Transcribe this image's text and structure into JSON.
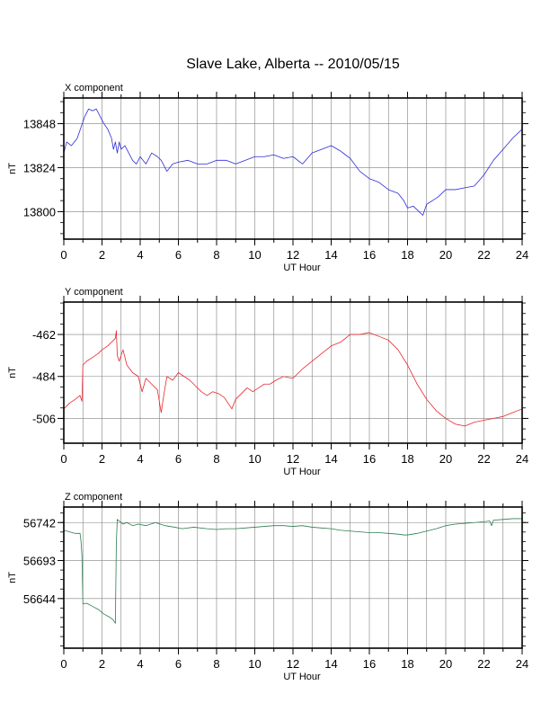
{
  "title": "Slave Lake, Alberta -- 2010/05/15",
  "chart_data": [
    {
      "type": "line",
      "component_label": "X component",
      "xlabel": "UT Hour",
      "ylabel": "nT",
      "xlim": [
        0,
        24
      ],
      "ylim": [
        13785,
        13862
      ],
      "xticks": [
        0,
        2,
        4,
        6,
        8,
        10,
        12,
        14,
        16,
        18,
        20,
        22,
        24
      ],
      "yticks": [
        13800,
        13824,
        13848
      ],
      "grid": true,
      "series": [
        {
          "color": "#2b2bd9",
          "x": [
            0,
            0.15,
            0.4,
            0.7,
            0.9,
            1.1,
            1.3,
            1.5,
            1.7,
            1.9,
            2.1,
            2.3,
            2.5,
            2.6,
            2.7,
            2.8,
            2.9,
            3.0,
            3.2,
            3.4,
            3.6,
            3.8,
            4.0,
            4.3,
            4.6,
            4.9,
            5.1,
            5.4,
            5.7,
            6.0,
            6.5,
            7.0,
            7.5,
            8.0,
            8.5,
            9.0,
            9.5,
            10.0,
            10.5,
            11.0,
            11.5,
            12.0,
            12.5,
            13.0,
            13.5,
            14.0,
            14.5,
            15.0,
            15.5,
            16.0,
            16.5,
            17.0,
            17.5,
            17.8,
            18.0,
            18.3,
            18.6,
            18.8,
            19.0,
            19.3,
            19.6,
            20.0,
            20.5,
            21.0,
            21.5,
            22.0,
            22.5,
            23.0,
            23.5,
            24.0
          ],
          "y": [
            13832,
            13838,
            13836,
            13840,
            13846,
            13852,
            13856,
            13855,
            13856,
            13852,
            13848,
            13845,
            13840,
            13834,
            13838,
            13832,
            13838,
            13834,
            13836,
            13832,
            13828,
            13826,
            13830,
            13826,
            13832,
            13830,
            13828,
            13822,
            13826,
            13827,
            13828,
            13826,
            13826,
            13828,
            13828,
            13826,
            13828,
            13830,
            13830,
            13831,
            13829,
            13830,
            13826,
            13832,
            13834,
            13836,
            13833,
            13829,
            13822,
            13818,
            13816,
            13812,
            13810,
            13806,
            13802,
            13803,
            13800,
            13798,
            13804,
            13806,
            13808,
            13812,
            13812,
            13813,
            13814,
            13820,
            13828,
            13834,
            13840,
            13845
          ]
        }
      ]
    },
    {
      "type": "line",
      "component_label": "Y component",
      "xlabel": "UT Hour",
      "ylabel": "nT",
      "xlim": [
        0,
        24
      ],
      "ylim": [
        -519,
        -445
      ],
      "xticks": [
        0,
        2,
        4,
        6,
        8,
        10,
        12,
        14,
        16,
        18,
        20,
        22,
        24
      ],
      "yticks": [
        -462,
        -484,
        -506
      ],
      "grid": true,
      "series": [
        {
          "color": "#e8262e",
          "x": [
            0,
            0.3,
            0.6,
            0.85,
            0.95,
            1.0,
            1.2,
            1.5,
            1.8,
            2.0,
            2.3,
            2.6,
            2.7,
            2.75,
            2.8,
            2.9,
            3.1,
            3.3,
            3.6,
            3.9,
            4.1,
            4.3,
            4.6,
            4.9,
            5.1,
            5.2,
            5.4,
            5.7,
            6.0,
            6.3,
            6.6,
            6.9,
            7.2,
            7.5,
            7.8,
            8.1,
            8.4,
            8.6,
            8.8,
            9.0,
            9.3,
            9.6,
            9.9,
            10.2,
            10.5,
            10.8,
            11.1,
            11.5,
            12.0,
            12.5,
            13.0,
            13.5,
            14.0,
            14.5,
            15.0,
            15.5,
            16.0,
            16.5,
            17.0,
            17.5,
            18.0,
            18.5,
            19.0,
            19.5,
            20.0,
            20.5,
            21.0,
            21.5,
            22.0,
            22.5,
            23.0,
            23.5,
            24.0
          ],
          "y": [
            -501,
            -498,
            -496,
            -494,
            -497,
            -478,
            -476,
            -474,
            -472,
            -470,
            -468,
            -465,
            -464,
            -460,
            -473,
            -476,
            -470,
            -478,
            -482,
            -484,
            -492,
            -485,
            -488,
            -491,
            -503,
            -496,
            -484,
            -486,
            -482,
            -484,
            -486,
            -489,
            -492,
            -494,
            -492,
            -493,
            -495,
            -498,
            -501,
            -496,
            -493,
            -490,
            -492,
            -490,
            -488,
            -488,
            -486,
            -484,
            -485,
            -480,
            -476,
            -472,
            -468,
            -466,
            -462,
            -462,
            -461,
            -463,
            -465,
            -470,
            -478,
            -488,
            -496,
            -502,
            -506,
            -509,
            -510,
            -508,
            -507,
            -506,
            -505,
            -503,
            -501
          ]
        }
      ]
    },
    {
      "type": "line",
      "component_label": "Z component",
      "xlabel": "UT Hour",
      "ylabel": "nT",
      "xlim": [
        0,
        24
      ],
      "ylim": [
        56580,
        56762
      ],
      "xticks": [
        0,
        2,
        4,
        6,
        8,
        10,
        12,
        14,
        16,
        18,
        20,
        22,
        24
      ],
      "yticks": [
        56644,
        56693,
        56742
      ],
      "grid": true,
      "series": [
        {
          "color": "#2e7d4f",
          "x": [
            0,
            0.3,
            0.6,
            0.85,
            0.9,
            0.95,
            1.0,
            1.2,
            1.5,
            1.8,
            2.1,
            2.4,
            2.6,
            2.7,
            2.75,
            2.8,
            2.9,
            3.1,
            3.3,
            3.6,
            3.9,
            4.3,
            4.8,
            5.3,
            5.8,
            6.2,
            6.8,
            7.5,
            8.0,
            8.5,
            9.0,
            9.5,
            10.0,
            10.5,
            11.0,
            11.5,
            12.0,
            12.5,
            13.0,
            13.5,
            14.0,
            14.5,
            15.0,
            15.5,
            16.0,
            16.5,
            17.0,
            17.5,
            17.8,
            18.0,
            18.5,
            19.0,
            19.5,
            20.0,
            20.5,
            21.0,
            21.5,
            22.0,
            22.3,
            22.4,
            22.5,
            23.0,
            23.5,
            24.0
          ],
          "y": [
            56732,
            56730,
            56728,
            56728,
            56718,
            56700,
            56637,
            56638,
            56634,
            56630,
            56624,
            56620,
            56616,
            56612,
            56715,
            56746,
            56744,
            56740,
            56742,
            56738,
            56740,
            56738,
            56742,
            56738,
            56736,
            56734,
            56736,
            56734,
            56733,
            56734,
            56734,
            56735,
            56736,
            56737,
            56738,
            56738,
            56737,
            56738,
            56736,
            56735,
            56734,
            56732,
            56731,
            56730,
            56729,
            56729,
            56728,
            56727,
            56726,
            56726,
            56728,
            56731,
            56734,
            56738,
            56740,
            56741,
            56742,
            56743,
            56744,
            56738,
            56745,
            56746,
            56747,
            56747
          ]
        }
      ]
    }
  ]
}
